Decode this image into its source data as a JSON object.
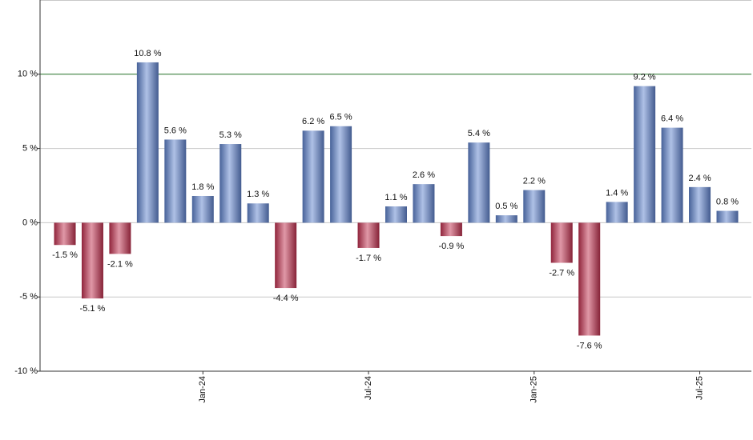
{
  "chart_data": {
    "type": "bar",
    "categories": [
      null,
      null,
      null,
      null,
      null,
      "Jan-24",
      null,
      null,
      null,
      null,
      null,
      "Jul-24",
      null,
      null,
      null,
      null,
      null,
      "Jan-25",
      null,
      null,
      null,
      null,
      null,
      "Jul-25",
      null
    ],
    "values": [
      -1.5,
      -5.1,
      -2.1,
      10.8,
      5.6,
      1.8,
      5.3,
      1.3,
      -4.4,
      6.2,
      6.5,
      -1.7,
      1.1,
      2.6,
      -0.9,
      5.4,
      0.5,
      2.2,
      -2.7,
      -7.6,
      1.4,
      9.2,
      6.4,
      2.4,
      0.8
    ],
    "value_labels": [
      "-1.5 %",
      "-5.1 %",
      "-2.1 %",
      "10.8 %",
      "5.6 %",
      "1.8 %",
      "5.3 %",
      "1.3 %",
      "-4.4 %",
      "6.2 %",
      "6.5 %",
      "-1.7 %",
      "1.1 %",
      "2.6 %",
      "-0.9 %",
      "5.4 %",
      "0.5 %",
      "2.2 %",
      "-2.7 %",
      "-7.6 %",
      "1.4 %",
      "9.2 %",
      "6.4 %",
      "2.4 %",
      "0.8 %"
    ],
    "positive_color": "#5f82cc",
    "negative_color": "#c0304f",
    "ylim": [
      -10,
      15
    ],
    "yticks": [
      {
        "value": 10,
        "label": "10 %"
      },
      {
        "value": 5,
        "label": "5 %"
      },
      {
        "value": 0,
        "label": "0 %"
      },
      {
        "value": -5,
        "label": "-5 %"
      },
      {
        "value": -10,
        "label": "-10 %"
      }
    ],
    "grid": true,
    "reference_line": {
      "value": 10,
      "color": "#2e7d32"
    }
  }
}
